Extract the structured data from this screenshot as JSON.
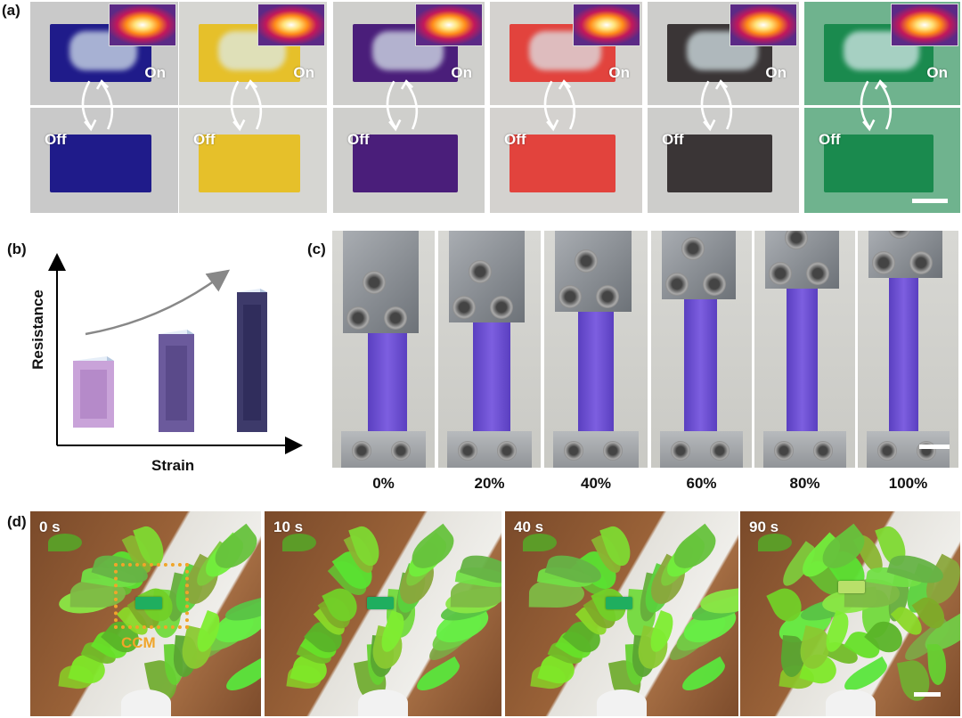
{
  "panels": {
    "a": {
      "label": "(a)",
      "on_label": "On",
      "off_label": "Off",
      "colors": [
        "#1f1b8a",
        "#e6c02a",
        "#4a1e7a",
        "#e2433d",
        "#3a3536",
        "#1a8a4e"
      ],
      "backgrounds": [
        "#c9c9c9",
        "#d6d6d2",
        "#cfcfcc",
        "#d4d2cf",
        "#cdcdcb",
        "#6fb38e"
      ]
    },
    "b": {
      "label": "(b)",
      "ylabel": "Resistance",
      "xlabel": "Strain"
    },
    "c": {
      "label": "(c)",
      "strains": [
        "0%",
        "20%",
        "40%",
        "60%",
        "80%",
        "100%"
      ]
    },
    "d": {
      "label": "(d)",
      "times": [
        "0 s",
        "10 s",
        "40 s",
        "90 s"
      ],
      "annotation": "CCM",
      "annotation_color": "#f0a52a"
    }
  }
}
